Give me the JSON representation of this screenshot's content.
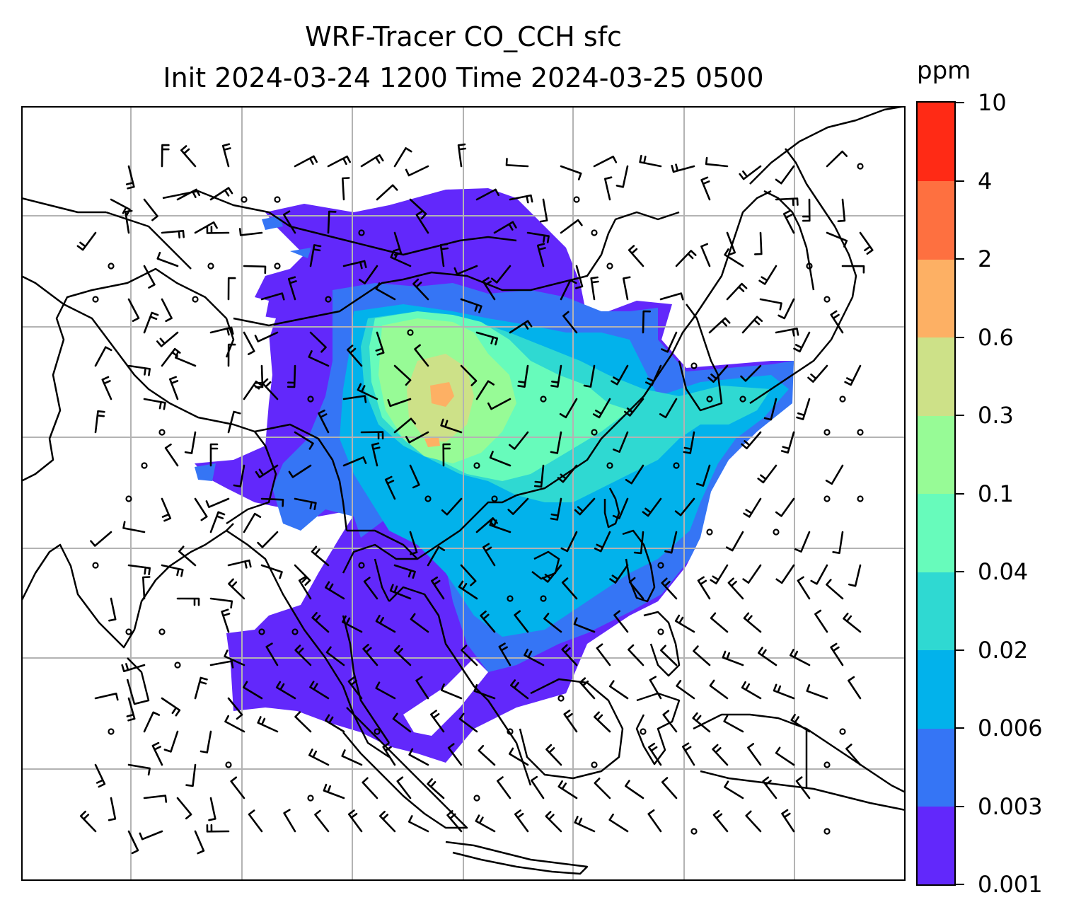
{
  "title": {
    "line1": "WRF-Tracer CO_CCH sfc",
    "line2": "Init 2024-03-24 1200 Time 2024-03-25 0500"
  },
  "colorbar": {
    "unit": "ppm",
    "levels": [
      "0.001",
      "0.003",
      "0.006",
      "0.02",
      "0.04",
      "0.1",
      "0.3",
      "0.6",
      "2",
      "4",
      "10"
    ],
    "colors": [
      "#6228fb",
      "#3575f5",
      "#02b2eb",
      "#2fd9d2",
      "#67fbbb",
      "#97fb96",
      "#cde188",
      "#fdb064",
      "#fe7040",
      "#ff2a15"
    ]
  },
  "map": {
    "field": "CO_CCH surface concentration",
    "gridlines": true,
    "wind_barbs": true
  }
}
